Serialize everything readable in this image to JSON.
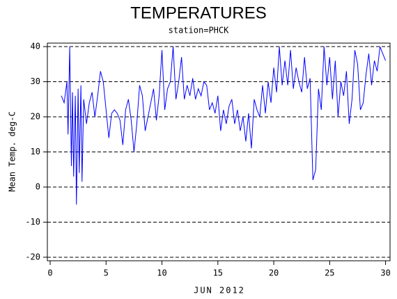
{
  "chart_data": {
    "type": "line",
    "title": "TEMPERATURES",
    "subtitle": "station=PHCK",
    "x_label": "JUN 2012",
    "y_label": "Mean Temp. deg-C",
    "x": [
      1.0,
      1.25,
      1.5,
      1.6,
      1.75,
      1.9,
      2.0,
      2.1,
      2.25,
      2.35,
      2.5,
      2.6,
      2.75,
      2.85,
      3.0,
      3.25,
      3.5,
      3.75,
      4.0,
      4.25,
      4.5,
      4.75,
      5.0,
      5.25,
      5.5,
      5.75,
      6.0,
      6.25,
      6.5,
      6.75,
      7.0,
      7.25,
      7.5,
      7.75,
      8.0,
      8.25,
      8.5,
      8.75,
      9.0,
      9.25,
      9.5,
      9.75,
      10.0,
      10.25,
      10.5,
      10.75,
      11.0,
      11.25,
      11.5,
      11.75,
      12.0,
      12.25,
      12.5,
      12.75,
      13.0,
      13.25,
      13.5,
      13.75,
      14.0,
      14.25,
      14.5,
      14.75,
      15.0,
      15.25,
      15.5,
      15.75,
      16.0,
      16.25,
      16.5,
      16.75,
      17.0,
      17.25,
      17.5,
      17.75,
      18.0,
      18.25,
      18.5,
      18.75,
      19.0,
      19.25,
      19.5,
      19.75,
      20.0,
      20.25,
      20.5,
      20.75,
      21.0,
      21.25,
      21.5,
      21.75,
      22.0,
      22.25,
      22.5,
      22.75,
      23.0,
      23.25,
      23.5,
      23.75,
      24.0,
      24.25,
      24.5,
      24.75,
      25.0,
      25.25,
      25.5,
      25.75,
      26.0,
      26.25,
      26.5,
      26.75,
      27.0,
      27.25,
      27.5,
      27.75,
      28.0,
      28.25,
      28.5,
      28.75,
      29.0,
      29.25,
      29.5,
      29.75,
      30.0
    ],
    "series": [
      {
        "name": "Mean Temp",
        "color": "#0000ff",
        "values": [
          26,
          24,
          30,
          15,
          40,
          6,
          27,
          3,
          26,
          -5,
          28,
          4,
          29,
          1.5,
          25,
          18,
          24,
          27,
          20,
          26,
          33,
          30,
          22,
          14,
          21,
          22,
          21,
          19,
          12,
          22,
          25,
          19,
          10,
          18,
          29,
          26,
          16,
          20,
          24,
          28,
          19,
          26,
          39,
          22,
          28,
          30,
          40,
          25,
          30,
          37,
          25,
          29,
          26,
          31,
          25,
          28,
          26,
          30,
          29,
          22,
          24,
          21,
          26,
          16,
          22,
          18,
          23,
          25,
          18,
          22,
          16,
          20,
          13,
          21,
          11,
          25,
          22,
          20,
          29,
          21,
          30,
          24,
          34,
          27,
          40,
          29,
          36,
          29,
          39,
          28,
          34,
          30,
          27,
          37,
          28,
          31,
          2,
          5,
          28,
          22,
          40,
          29,
          37,
          25,
          36,
          20,
          30,
          26,
          33,
          18,
          25,
          39,
          35,
          22,
          24,
          32,
          38,
          29,
          36,
          33,
          40,
          38,
          36
        ]
      }
    ],
    "xlim": [
      -0.25,
      30.4
    ],
    "ylim": [
      -21,
      41
    ],
    "xticks": [
      0,
      5,
      10,
      15,
      20,
      25,
      30
    ],
    "yticks": [
      -20,
      -10,
      0,
      10,
      20,
      30,
      40
    ],
    "grid": true
  }
}
